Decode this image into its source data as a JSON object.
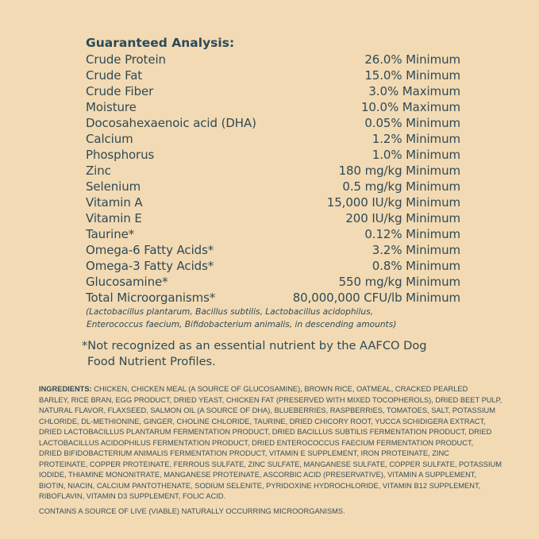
{
  "colors": {
    "background": "#f2dab4",
    "text": "#2f4a54"
  },
  "analysis": {
    "title": "Guaranteed Analysis:",
    "rows": [
      {
        "name": "Crude Protein",
        "value": "26.0% Minimum"
      },
      {
        "name": "Crude Fat",
        "value": "15.0% Minimum"
      },
      {
        "name": "Crude Fiber",
        "value": "3.0% Maximum"
      },
      {
        "name": "Moisture",
        "value": "10.0% Maximum"
      },
      {
        "name": "Docosahexaenoic acid (DHA)",
        "value": "0.05% Minimum"
      },
      {
        "name": "Calcium",
        "value": "1.2% Minimum"
      },
      {
        "name": "Phosphorus",
        "value": "1.0% Minimum"
      },
      {
        "name": "Zinc",
        "value": "180 mg/kg Minimum"
      },
      {
        "name": "Selenium",
        "value": "0.5 mg/kg Minimum"
      },
      {
        "name": "Vitamin A",
        "value": "15,000 IU/kg Minimum"
      },
      {
        "name": "Vitamin E",
        "value": "200 IU/kg Minimum"
      },
      {
        "name": "Taurine*",
        "value": "0.12% Minimum"
      },
      {
        "name": "Omega-6 Fatty Acids*",
        "value": "3.2% Minimum"
      },
      {
        "name": "Omega-3 Fatty Acids*",
        "value": "0.8% Minimum"
      },
      {
        "name": "Glucosamine*",
        "value": "550 mg/kg Minimum"
      },
      {
        "name": "Total Microorganisms*",
        "value": "80,000,000 CFU/lb Minimum"
      }
    ],
    "note_lines": [
      "(Lactobacillus plantarum, Bacillus subtilis, Lactobacillus acidophilus,",
      "Enterococcus faecium, Bifidobacterium animalis, in descending amounts)"
    ]
  },
  "footnote": {
    "line1": "*Not recognized as an essential nutrient by the AAFCO Dog",
    "line2": "Food Nutrient Profiles."
  },
  "ingredients": {
    "label": "INGREDIENTS:",
    "lines": [
      " CHICKEN, CHICKEN MEAL (A SOURCE OF GLUCOSAMINE), BROWN RICE, OATMEAL, CRACKED PEARLED",
      "BARLEY, RICE BRAN, EGG PRODUCT, DRIED YEAST, CHICKEN FAT (PRESERVED WITH MIXED TOCOPHEROLS), DRIED BEET PULP,",
      "NATURAL FLAVOR, FLAXSEED, SALMON OIL (A SOURCE OF DHA), BLUEBERRIES, RASPBERRIES, TOMATOES, SALT, POTASSIUM",
      "CHLORIDE, DL-METHIONINE, GINGER, CHOLINE CHLORIDE, TAURINE, DRIED CHICORY ROOT, YUCCA SCHIDIGERA EXTRACT,",
      "DRIED LACTOBACILLUS PLANTARUM FERMENTATION PRODUCT, DRIED BACILLUS SUBTILIS FERMENTATION PRODUCT, DRIED",
      "LACTOBACILLUS ACIDOPHILUS FERMENTATION PRODUCT, DRIED ENTEROCOCCUS FAECIUM FERMENTATION PRODUCT,",
      "DRIED BIFIDOBACTERIUM ANIMALIS FERMENTATION PRODUCT, VITAMIN E SUPPLEMENT, IRON PROTEINATE, ZINC",
      "PROTEINATE, COPPER PROTEINATE, FERROUS SULFATE, ZINC SULFATE, MANGANESE SULFATE, COPPER SULFATE, POTASSIUM",
      "IODIDE, THIAMINE MONONITRATE, MANGANESE PROTEINATE, ASCORBIC ACID (PRESERVATIVE), VITAMIN A SUPPLEMENT,",
      "BIOTIN, NIACIN, CALCIUM PANTOTHENATE, SODIUM SELENITE, PYRIDOXINE HYDROCHLORIDE, VITAMIN B12 SUPPLEMENT,",
      "RIBOFLAVIN, VITAMIN D3 SUPPLEMENT, FOLIC ACID."
    ],
    "contains": "CONTAINS A SOURCE OF LIVE (VIABLE) NATURALLY OCCURRING MICROORGANISMS."
  }
}
